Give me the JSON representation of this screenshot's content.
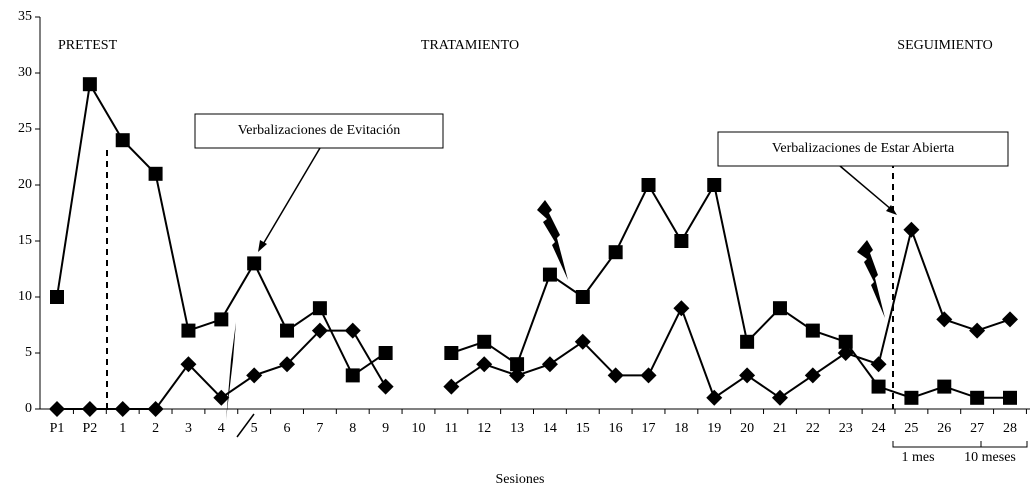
{
  "chart_data": {
    "type": "line",
    "x_label": "Sesiones",
    "phases": [
      "PRETEST",
      "TRATAMIENTO",
      "SEGUIMIENTO"
    ],
    "follow_up_labels": [
      "1 mes",
      "10 meses"
    ],
    "categories": [
      "P1",
      "P2",
      "1",
      "2",
      "3",
      "4",
      "5",
      "6",
      "7",
      "8",
      "9",
      "10",
      "11",
      "12",
      "13",
      "14",
      "15",
      "16",
      "17",
      "18",
      "19",
      "20",
      "21",
      "22",
      "23",
      "24",
      "25",
      "26",
      "27",
      "28"
    ],
    "series": [
      {
        "name": "Verbalizaciones de Evitación",
        "color": "#000000",
        "marker": "square",
        "values": [
          10,
          29,
          24,
          21,
          7,
          8,
          13,
          7,
          9,
          3,
          5,
          null,
          5,
          6,
          4,
          12,
          10,
          14,
          20,
          15,
          20,
          6,
          9,
          7,
          6,
          2,
          1,
          2,
          1,
          1
        ]
      },
      {
        "name": "Verbalizaciones de Estar Abierta",
        "color": "#000000",
        "marker": "diamond",
        "values": [
          0,
          0,
          0,
          0,
          4,
          1,
          3,
          4,
          7,
          7,
          2,
          null,
          2,
          4,
          3,
          4,
          6,
          3,
          3,
          9,
          1,
          3,
          1,
          3,
          5,
          4,
          16,
          8,
          7,
          8
        ]
      }
    ],
    "ylim": [
      0,
      35
    ],
    "yticks": [
      0,
      5,
      10,
      15,
      20,
      25,
      30,
      35
    ]
  }
}
